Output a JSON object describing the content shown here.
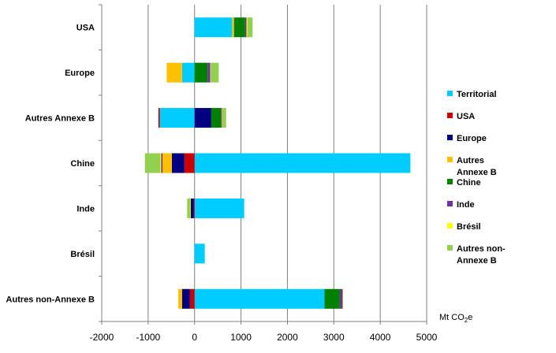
{
  "chart_data": {
    "type": "bar",
    "orientation": "horizontal",
    "stacked": true,
    "categories": [
      "USA",
      "Europe",
      "Autres Annexe B",
      "Chine",
      "Inde",
      "Brésil",
      "Autres non-Annexe B"
    ],
    "series": [
      {
        "name": "Territorial",
        "color": "#00CCFF",
        "values": [
          810,
          -270,
          -750,
          4650,
          1070,
          220,
          2800
        ]
      },
      {
        "name": "USA",
        "color": "#CC0000",
        "values": [
          0,
          0,
          -30,
          -220,
          -20,
          0,
          -100
        ]
      },
      {
        "name": "Europe",
        "color": "#000080",
        "values": [
          0,
          0,
          360,
          -270,
          -60,
          0,
          -170
        ]
      },
      {
        "name": "Autres\nAnnexe B",
        "color": "#FFC000",
        "values": [
          40,
          -330,
          0,
          -200,
          0,
          0,
          -80
        ]
      },
      {
        "name": "Chine",
        "color": "#008000",
        "values": [
          240,
          280,
          210,
          0,
          0,
          0,
          330
        ]
      },
      {
        "name": "Inde",
        "color": "#7030A0",
        "values": [
          30,
          60,
          20,
          -30,
          0,
          0,
          60
        ]
      },
      {
        "name": "Brésil",
        "color": "#FFFF00",
        "values": [
          20,
          10,
          10,
          -20,
          -10,
          0,
          10
        ]
      },
      {
        "name": "Autres non-\nAnnexe B",
        "color": "#92D050",
        "values": [
          110,
          170,
          80,
          -330,
          -70,
          0,
          0
        ]
      }
    ],
    "x_ticks": [
      -2000,
      -1000,
      0,
      1000,
      2000,
      3000,
      4000,
      5000
    ],
    "xlim": [
      -2000,
      5000
    ],
    "unit_label": "Mt CO2e",
    "grid": true,
    "legend_placement": "right"
  }
}
